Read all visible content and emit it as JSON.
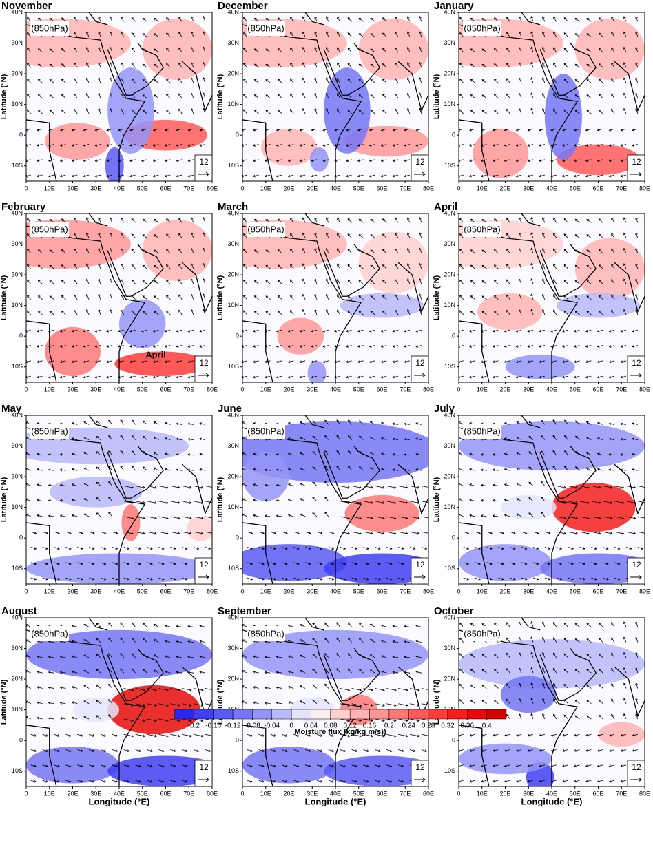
{
  "panels": [
    {
      "title": "November"
    },
    {
      "title": "December"
    },
    {
      "title": "January"
    },
    {
      "title": "February",
      "annotation": "April"
    },
    {
      "title": "March"
    },
    {
      "title": "April"
    },
    {
      "title": "May"
    },
    {
      "title": "June"
    },
    {
      "title": "July"
    },
    {
      "title": "August"
    },
    {
      "title": "September"
    },
    {
      "title": "October"
    }
  ],
  "level_label": "(850hPa)",
  "ref_vector": 12,
  "axes": {
    "ylabel": "Latitude (°N)",
    "xlabel": "Longitude (°E)",
    "xlim": [
      0,
      80
    ],
    "ylim": [
      -15,
      40
    ],
    "xticks": [
      0,
      {
        "value": 10,
        "label": "10E"
      },
      {
        "value": 20,
        "label": "20E"
      },
      {
        "value": 30,
        "label": "30E"
      },
      {
        "value": 40,
        "label": "40E"
      },
      {
        "value": 50,
        "label": "50E"
      },
      {
        "value": 60,
        "label": "60E"
      },
      {
        "value": 70,
        "label": "70E"
      },
      {
        "value": 80,
        "label": "80E"
      }
    ],
    "yticks": [
      {
        "value": -10,
        "label": "10S"
      },
      0,
      {
        "value": 10,
        "label": "10N"
      },
      {
        "value": 20,
        "label": "20N"
      },
      {
        "value": 30,
        "label": "30N"
      },
      {
        "value": 40,
        "label": "40N"
      }
    ]
  },
  "colorbar": {
    "label": "Moisture flux (kg/kg m/s))",
    "ticks": [
      -0.2,
      -0.16,
      -0.12,
      -0.08,
      -0.04,
      0,
      0.04,
      0.08,
      0.12,
      0.16,
      0.2,
      0.24,
      0.28,
      0.32,
      0.36,
      0.4
    ],
    "colors": [
      "#2828f0",
      "#4040f2",
      "#5a5af4",
      "#7676f6",
      "#9494f8",
      "#b8b8fb",
      "#e4e4fe",
      "#ffeeee",
      "#ffd0d0",
      "#ffb4b4",
      "#ff9696",
      "#ff7878",
      "#ff5a5a",
      "#ff3c3c",
      "#f51e1e",
      "#e60a0a",
      "#d20000"
    ]
  }
}
